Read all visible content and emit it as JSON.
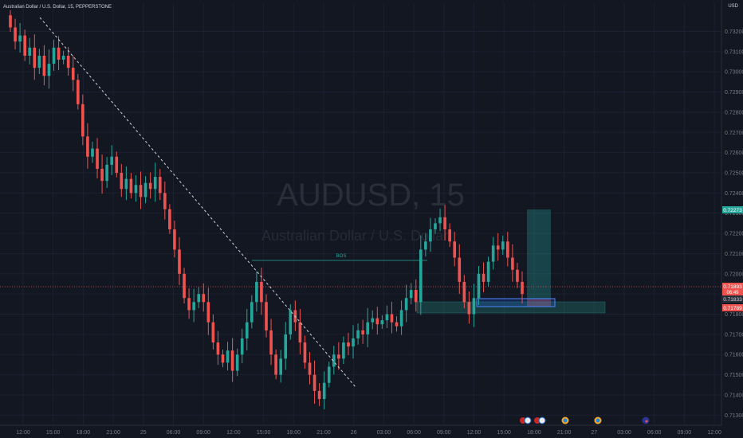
{
  "header": {
    "symbol_title": "Australian Dollar / U.S. Dollar, 15, PEPPERSTONE",
    "currency": "USD"
  },
  "watermark": {
    "ticker": "AUDUSD, 15",
    "name": "Australian Dollar / U.S. Dollar"
  },
  "chart_data": {
    "type": "candlestick",
    "title": "Australian Dollar / U.S. Dollar, 15, PEPPERSTONE",
    "ylim": [
      0.7125,
      0.7334
    ],
    "y_ticks": [
      "0.73200",
      "0.73100",
      "0.73000",
      "0.72900",
      "0.72800",
      "0.72700",
      "0.72600",
      "0.72500",
      "0.72400",
      "0.72300",
      "0.72200",
      "0.72100",
      "0.72000",
      "0.71900",
      "0.71800",
      "0.71700",
      "0.71600",
      "0.71500",
      "0.71400",
      "0.71300"
    ],
    "x_ticks": [
      "12:00",
      "15:00",
      "18:00",
      "21:00",
      "25",
      "06:00",
      "09:00",
      "12:00",
      "15:00",
      "18:00",
      "21:00",
      "26",
      "03:00",
      "06:00",
      "09:00",
      "12:00",
      "15:00",
      "18:00",
      "21:00",
      "27",
      "03:00",
      "06:00",
      "09:00",
      "12:00"
    ],
    "annotation_bos": "BOS",
    "price_labels": {
      "target": "0.72273",
      "last": "0.71893",
      "countdown": "06:49",
      "entry": "0.71833",
      "stop": "0.71789"
    },
    "colors": {
      "up": "#26a69a",
      "down": "#ef5350",
      "background": "#131722"
    },
    "candles_close": [
      0.7322,
      0.7315,
      0.7318,
      0.7308,
      0.7312,
      0.7302,
      0.7308,
      0.7298,
      0.7304,
      0.7312,
      0.7306,
      0.7308,
      0.7302,
      0.7296,
      0.7284,
      0.7268,
      0.7258,
      0.7262,
      0.7252,
      0.7246,
      0.7254,
      0.7258,
      0.725,
      0.7242,
      0.7247,
      0.724,
      0.7244,
      0.7238,
      0.7245,
      0.7242,
      0.7248,
      0.724,
      0.7232,
      0.7222,
      0.7212,
      0.72,
      0.7188,
      0.7182,
      0.7186,
      0.719,
      0.7186,
      0.7176,
      0.7166,
      0.716,
      0.7156,
      0.7162,
      0.7152,
      0.716,
      0.7168,
      0.7176,
      0.7186,
      0.7196,
      0.7186,
      0.7172,
      0.716,
      0.715,
      0.7158,
      0.717,
      0.7182,
      0.7176,
      0.7166,
      0.7156,
      0.715,
      0.7142,
      0.7138,
      0.7146,
      0.7154,
      0.716,
      0.7158,
      0.7166,
      0.7164,
      0.7168,
      0.7172,
      0.717,
      0.7176,
      0.7178,
      0.7175,
      0.7177,
      0.718,
      0.7176,
      0.7174,
      0.7182,
      0.7188,
      0.7192,
      0.7186,
      0.7212,
      0.7216,
      0.7222,
      0.7225,
      0.7228,
      0.7222,
      0.7216,
      0.7208,
      0.7196,
      0.7186,
      0.718,
      0.7188,
      0.72,
      0.7196,
      0.7206,
      0.7214,
      0.7212,
      0.7216,
      0.7208,
      0.7202,
      0.7196,
      0.719
    ],
    "events": [
      "flags-au-us",
      "flags-au-us",
      "globe",
      "globe",
      "flag-au"
    ]
  }
}
